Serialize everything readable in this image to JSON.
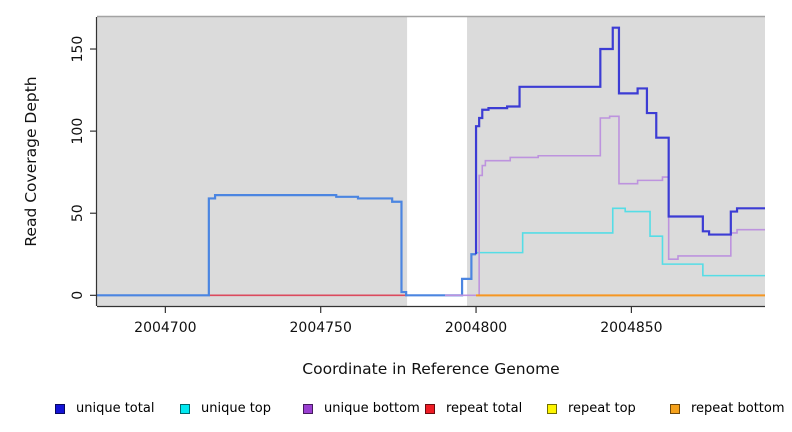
{
  "chart_data": {
    "type": "line",
    "title": "",
    "xlabel": "Coordinate in Reference Genome",
    "ylabel": "Read Coverage Depth",
    "xlim": [
      2004678,
      2004893
    ],
    "ylim": [
      -6.5,
      169.5
    ],
    "x_ticks": [
      2004700,
      2004750,
      2004800,
      2004850
    ],
    "x_tick_labels": [
      "2004700",
      "2004750",
      "2004800",
      "2004850"
    ],
    "y_ticks": [
      0,
      50,
      100,
      150
    ],
    "y_tick_labels": [
      "0",
      "50",
      "100",
      "150"
    ],
    "grid": "off",
    "plot_bg": "#dbdbdb",
    "top_border_color": "#a3a3a3",
    "axis_color": "#333333",
    "missing_data_band": {
      "x0": 2004777.8,
      "x1": 2004797.1,
      "color": "#ffffff"
    },
    "series": [
      {
        "name": "repeat total",
        "color": "#db4a5e",
        "width": 1.6,
        "points": [
          [
            2004714,
            0
          ],
          [
            2004778,
            0
          ]
        ]
      },
      {
        "name": "unique total (left, overlaps unique top)",
        "color": "#4b85e1",
        "width": 2.2,
        "points": [
          [
            2004678,
            0
          ],
          [
            2004714,
            0
          ],
          [
            2004714,
            59
          ],
          [
            2004716,
            59
          ],
          [
            2004716,
            61
          ],
          [
            2004755,
            61
          ],
          [
            2004755,
            60
          ],
          [
            2004762,
            60
          ],
          [
            2004762,
            59
          ],
          [
            2004773,
            59
          ],
          [
            2004773,
            57
          ],
          [
            2004776,
            57
          ],
          [
            2004776,
            2
          ],
          [
            2004777.5,
            2
          ],
          [
            2004777.5,
            0
          ],
          [
            2004795.5,
            0
          ],
          [
            2004795.5,
            10
          ],
          [
            2004798.5,
            10
          ],
          [
            2004798.5,
            25
          ],
          [
            2004800,
            25
          ]
        ]
      },
      {
        "name": "unique top",
        "color": "#55dde6",
        "width": 1.6,
        "points": [
          [
            2004800,
            26
          ],
          [
            2004815,
            26
          ],
          [
            2004815,
            38
          ],
          [
            2004844,
            38
          ],
          [
            2004844,
            53
          ],
          [
            2004848,
            53
          ],
          [
            2004848,
            51
          ],
          [
            2004856,
            51
          ],
          [
            2004856,
            36
          ],
          [
            2004860,
            36
          ],
          [
            2004860,
            19
          ],
          [
            2004873,
            19
          ],
          [
            2004873,
            12
          ],
          [
            2004893,
            12
          ]
        ]
      },
      {
        "name": "unique bottom",
        "color": "#bd93de",
        "width": 1.6,
        "points": [
          [
            2004790,
            0
          ],
          [
            2004801,
            0
          ],
          [
            2004801,
            73
          ],
          [
            2004802,
            73
          ],
          [
            2004802,
            79
          ],
          [
            2004803,
            79
          ],
          [
            2004803,
            82
          ],
          [
            2004811,
            82
          ],
          [
            2004811,
            84
          ],
          [
            2004820,
            84
          ],
          [
            2004820,
            85
          ],
          [
            2004840,
            85
          ],
          [
            2004840,
            108
          ],
          [
            2004843,
            108
          ],
          [
            2004843,
            109
          ],
          [
            2004846,
            109
          ],
          [
            2004846,
            68
          ],
          [
            2004852,
            68
          ],
          [
            2004852,
            70
          ],
          [
            2004860,
            70
          ],
          [
            2004860,
            72
          ],
          [
            2004862,
            72
          ],
          [
            2004862,
            22
          ],
          [
            2004865,
            22
          ],
          [
            2004865,
            24
          ],
          [
            2004882,
            24
          ],
          [
            2004882,
            38
          ],
          [
            2004884,
            38
          ],
          [
            2004884,
            40
          ],
          [
            2004893,
            40
          ]
        ]
      },
      {
        "name": "unique total",
        "color": "#3c3cd4",
        "width": 2.2,
        "points": [
          [
            2004800,
            25
          ],
          [
            2004800,
            103
          ],
          [
            2004801,
            103
          ],
          [
            2004801,
            108
          ],
          [
            2004802,
            108
          ],
          [
            2004802,
            113
          ],
          [
            2004804,
            113
          ],
          [
            2004804,
            114
          ],
          [
            2004810,
            114
          ],
          [
            2004810,
            115
          ],
          [
            2004814,
            115
          ],
          [
            2004814,
            127
          ],
          [
            2004840,
            127
          ],
          [
            2004840,
            150
          ],
          [
            2004844,
            150
          ],
          [
            2004844,
            163
          ],
          [
            2004846,
            163
          ],
          [
            2004846,
            123
          ],
          [
            2004852,
            123
          ],
          [
            2004852,
            126
          ],
          [
            2004855,
            126
          ],
          [
            2004855,
            111
          ],
          [
            2004858,
            111
          ],
          [
            2004858,
            96
          ],
          [
            2004862,
            96
          ],
          [
            2004862,
            48
          ],
          [
            2004873,
            48
          ],
          [
            2004873,
            39
          ],
          [
            2004875,
            39
          ],
          [
            2004875,
            37
          ],
          [
            2004882,
            37
          ],
          [
            2004882,
            51
          ],
          [
            2004884,
            51
          ],
          [
            2004884,
            53
          ],
          [
            2004893,
            53
          ]
        ]
      },
      {
        "name": "repeat top",
        "color": "#f5e800",
        "width": 1.6,
        "points": [
          [
            2004800,
            0
          ],
          [
            2004893,
            0
          ]
        ]
      },
      {
        "name": "repeat bottom",
        "color": "#f59623",
        "width": 2,
        "points": [
          [
            2004800,
            0
          ],
          [
            2004893,
            0
          ]
        ]
      }
    ],
    "legend_position": "bottom",
    "legend": [
      {
        "label": "unique total",
        "fill": "#1414d6"
      },
      {
        "label": "unique top",
        "fill": "#00e8f0"
      },
      {
        "label": "unique bottom",
        "fill": "#9a3fd1"
      },
      {
        "label": "repeat total",
        "fill": "#ee1c25"
      },
      {
        "label": "repeat top",
        "fill": "#fdf500"
      },
      {
        "label": "repeat bottom",
        "fill": "#f5a11b"
      }
    ]
  }
}
